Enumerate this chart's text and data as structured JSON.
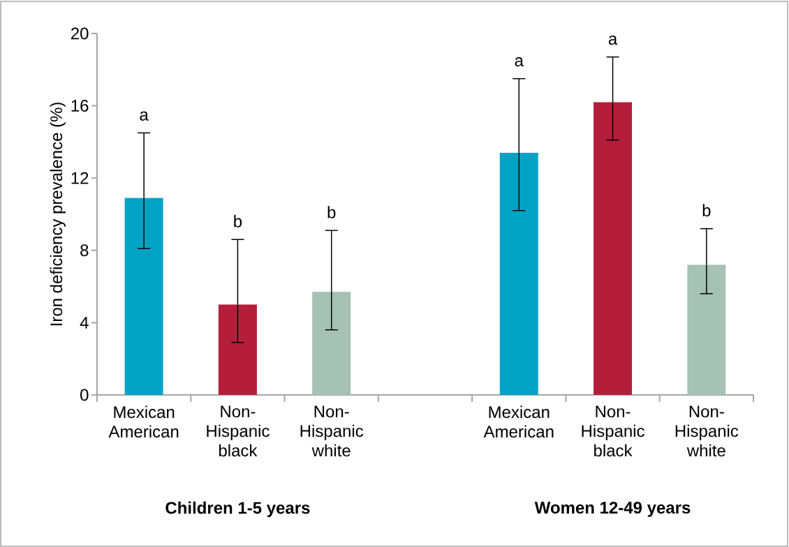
{
  "chart_data": {
    "type": "bar",
    "ylabel": "Iron deficiency prevalence (%)",
    "categories": [
      "Mexican American",
      "Non-Hispanic black",
      "Non-Hispanic white",
      null,
      "Mexican American",
      "Non-Hispanic black",
      "Non-Hispanic white"
    ],
    "values": [
      10.9,
      5.0,
      5.7,
      null,
      13.4,
      16.2,
      7.2
    ],
    "errors": [
      [
        8.1,
        14.5
      ],
      [
        2.9,
        8.6
      ],
      [
        3.6,
        9.1
      ],
      null,
      [
        10.2,
        17.5
      ],
      [
        14.1,
        18.7
      ],
      [
        5.6,
        9.2
      ]
    ],
    "colors": [
      "#00a3c4",
      "#b41e3a",
      "#a6c1b5",
      null,
      "#00a3c4",
      "#b41e3a",
      "#a6c1b5"
    ],
    "ylim": [
      0,
      20
    ],
    "yticks": [
      0,
      4,
      8,
      12,
      16,
      20
    ],
    "annotations": [
      "a",
      "b",
      "b",
      "a",
      "a",
      "b",
      "Children 1-5 years",
      "Women 12-49 years"
    ],
    "grid": false
  }
}
